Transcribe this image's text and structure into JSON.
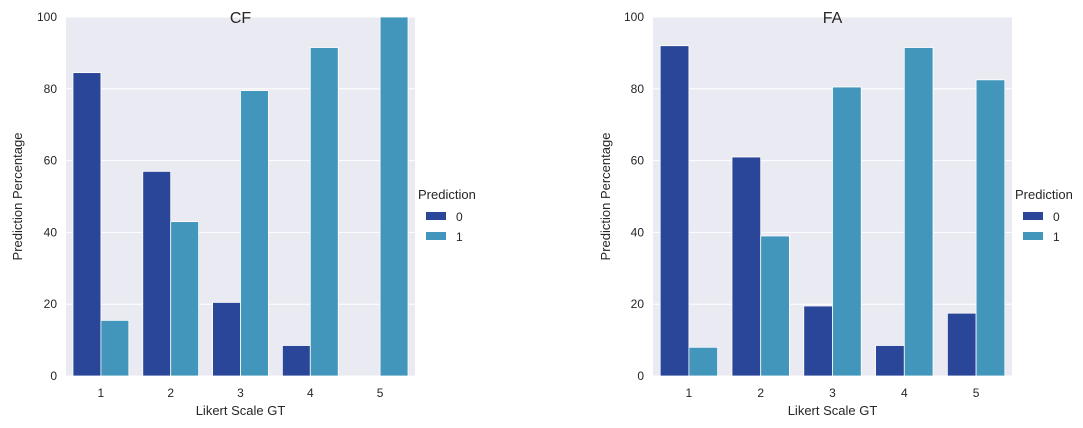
{
  "colors": {
    "background": "#eaeaf2",
    "grid": "#ffffff",
    "series": [
      "#2a4698",
      "#4396bb"
    ]
  },
  "chart_data": [
    {
      "type": "bar",
      "title": "CF",
      "xlabel": "Likert Scale GT",
      "ylabel": "Prediction Percentage",
      "categories": [
        "1",
        "2",
        "3",
        "4",
        "5"
      ],
      "yticks": [
        "0",
        "20",
        "40",
        "60",
        "80",
        "100"
      ],
      "ylim": [
        0,
        100
      ],
      "grid": true,
      "legend": {
        "title": "Prediction",
        "placement": "right"
      },
      "series": [
        {
          "name": "0",
          "values": [
            84.5,
            57,
            20.5,
            8.5,
            0
          ]
        },
        {
          "name": "1",
          "values": [
            15.5,
            43,
            79.5,
            91.5,
            100
          ]
        }
      ]
    },
    {
      "type": "bar",
      "title": "FA",
      "xlabel": "Likert Scale GT",
      "ylabel": "Prediction Percentage",
      "categories": [
        "1",
        "2",
        "3",
        "4",
        "5"
      ],
      "yticks": [
        "0",
        "20",
        "40",
        "60",
        "80",
        "100"
      ],
      "ylim": [
        0,
        100
      ],
      "grid": true,
      "legend": {
        "title": "Prediction",
        "placement": "right"
      },
      "series": [
        {
          "name": "0",
          "values": [
            92,
            61,
            19.5,
            8.5,
            17.5
          ]
        },
        {
          "name": "1",
          "values": [
            8,
            39,
            80.5,
            91.5,
            82.5
          ]
        }
      ]
    }
  ]
}
